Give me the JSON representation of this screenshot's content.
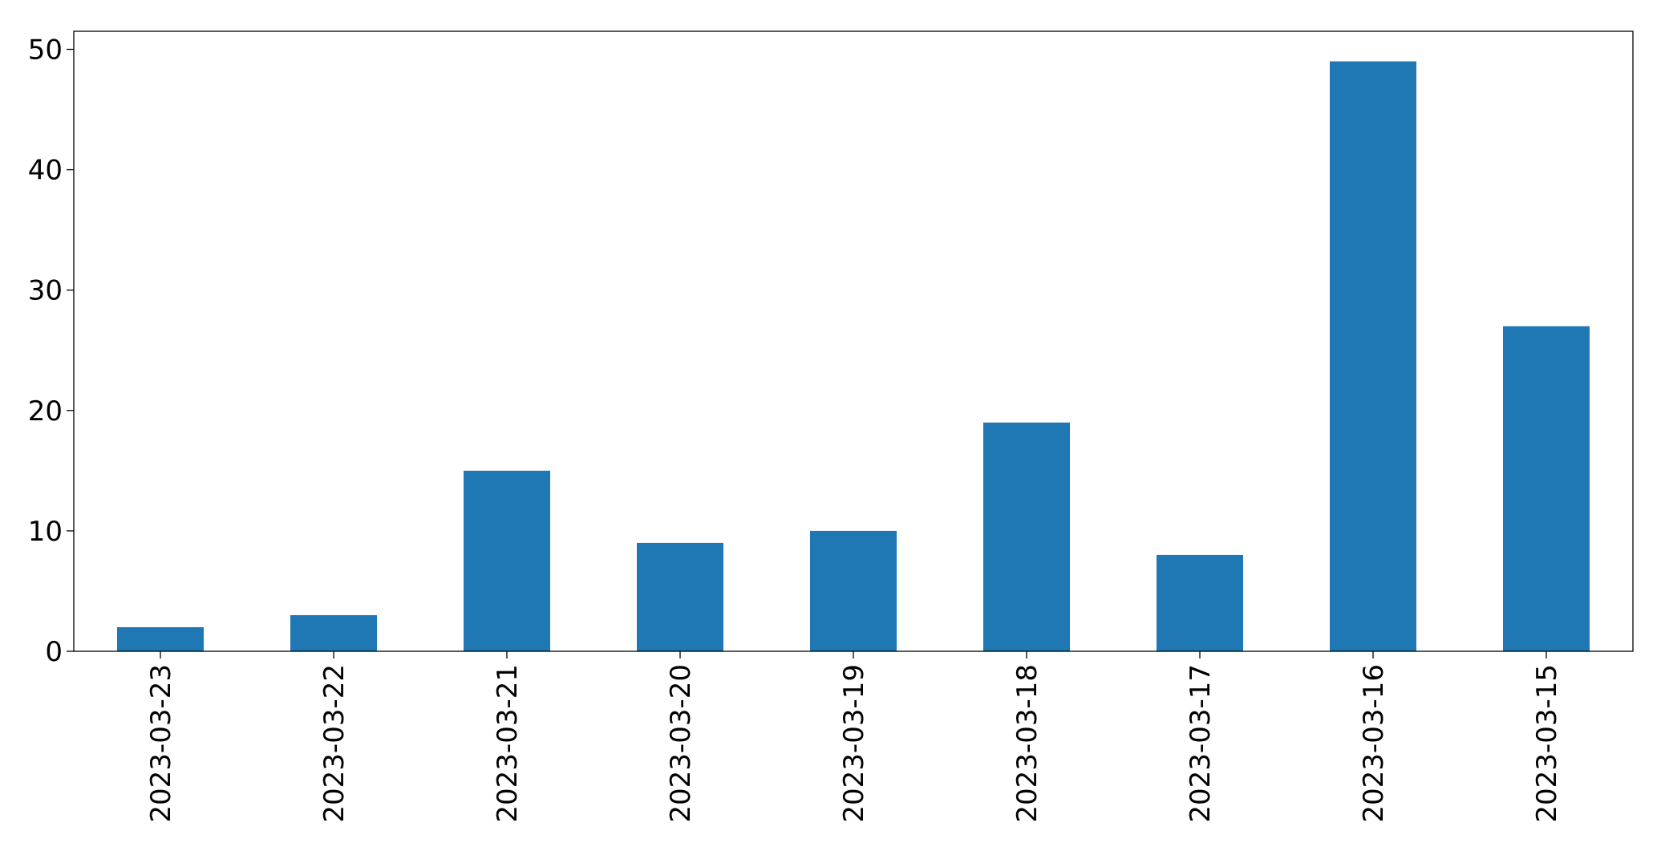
{
  "chart_data": {
    "type": "bar",
    "title": "",
    "xlabel": "",
    "ylabel": "",
    "categories": [
      "2023-03-23",
      "2023-03-22",
      "2023-03-21",
      "2023-03-20",
      "2023-03-19",
      "2023-03-18",
      "2023-03-17",
      "2023-03-16",
      "2023-03-15"
    ],
    "values": [
      2,
      3,
      15,
      9,
      10,
      19,
      8,
      49,
      27
    ],
    "ylim": [
      0,
      51.5
    ],
    "yticks": [
      0,
      10,
      20,
      30,
      40,
      50
    ],
    "bar_color": "#1f77b4",
    "grid": false,
    "legend": "none",
    "x_tick_rotation": "vertical"
  }
}
